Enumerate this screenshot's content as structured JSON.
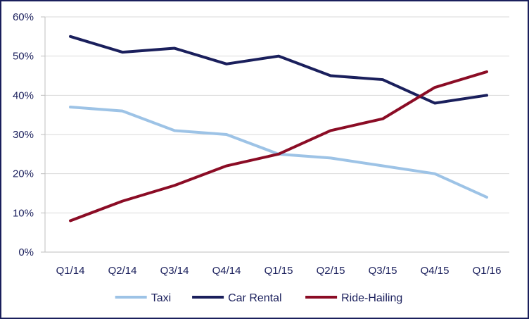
{
  "chart_data": {
    "type": "line",
    "title": "",
    "xlabel": "",
    "ylabel": "",
    "categories": [
      "Q1/14",
      "Q2/14",
      "Q3/14",
      "Q4/14",
      "Q1/15",
      "Q2/15",
      "Q3/15",
      "Q4/15",
      "Q1/16"
    ],
    "ylim": [
      0,
      60
    ],
    "yticks": [
      0,
      10,
      20,
      30,
      40,
      50,
      60
    ],
    "ytick_labels": [
      "0%",
      "10%",
      "20%",
      "30%",
      "40%",
      "50%",
      "60%"
    ],
    "grid": "horizontal",
    "legend_position": "bottom",
    "series": [
      {
        "name": "Taxi",
        "color": "#9dc3e6",
        "values": [
          37,
          36,
          31,
          30,
          25,
          24,
          22,
          20,
          14
        ]
      },
      {
        "name": "Car Rental",
        "color": "#1a1f5c",
        "values": [
          55,
          51,
          52,
          48,
          50,
          45,
          44,
          38,
          40
        ]
      },
      {
        "name": "Ride-Hailing",
        "color": "#8b0c25",
        "values": [
          8,
          13,
          17,
          22,
          25,
          31,
          34,
          42,
          46
        ]
      }
    ]
  }
}
